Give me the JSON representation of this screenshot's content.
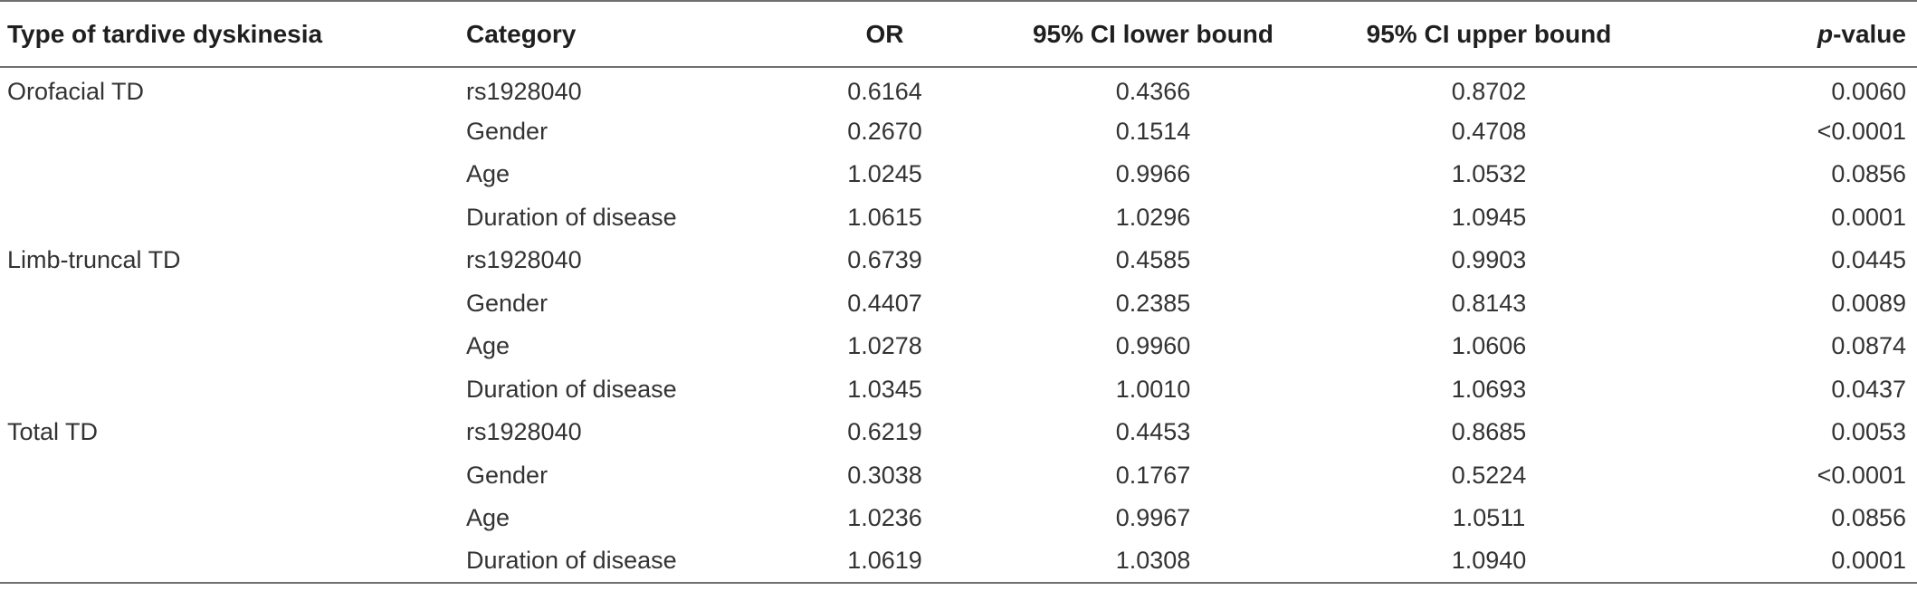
{
  "table": {
    "headers": {
      "type": "Type of tardive dyskinesia",
      "category": "Category",
      "or": "OR",
      "ci_lower": "95% CI lower bound",
      "ci_upper": "95% CI upper bound",
      "p_prefix": "p",
      "p_suffix": "-value"
    },
    "rows": [
      {
        "type": "Orofacial TD",
        "category": "rs1928040",
        "or": "0.6164",
        "ci_lower": "0.4366",
        "ci_upper": "0.8702",
        "p": "0.0060"
      },
      {
        "type": "",
        "category": "Gender",
        "or": "0.2670",
        "ci_lower": "0.1514",
        "ci_upper": "0.4708",
        "p": "<0.0001"
      },
      {
        "type": "",
        "category": "Age",
        "or": "1.0245",
        "ci_lower": "0.9966",
        "ci_upper": "1.0532",
        "p": "0.0856"
      },
      {
        "type": "",
        "category": "Duration of disease",
        "or": "1.0615",
        "ci_lower": "1.0296",
        "ci_upper": "1.0945",
        "p": "0.0001"
      },
      {
        "type": "Limb-truncal TD",
        "category": "rs1928040",
        "or": "0.6739",
        "ci_lower": "0.4585",
        "ci_upper": "0.9903",
        "p": "0.0445"
      },
      {
        "type": "",
        "category": "Gender",
        "or": "0.4407",
        "ci_lower": "0.2385",
        "ci_upper": "0.8143",
        "p": "0.0089"
      },
      {
        "type": "",
        "category": "Age",
        "or": "1.0278",
        "ci_lower": "0.9960",
        "ci_upper": "1.0606",
        "p": "0.0874"
      },
      {
        "type": "",
        "category": "Duration of disease",
        "or": "1.0345",
        "ci_lower": "1.0010",
        "ci_upper": "1.0693",
        "p": "0.0437"
      },
      {
        "type": "Total TD",
        "category": "rs1928040",
        "or": "0.6219",
        "ci_lower": "0.4453",
        "ci_upper": "0.8685",
        "p": "0.0053"
      },
      {
        "type": "",
        "category": "Gender",
        "or": "0.3038",
        "ci_lower": "0.1767",
        "ci_upper": "0.5224",
        "p": "<0.0001"
      },
      {
        "type": "",
        "category": "Age",
        "or": "1.0236",
        "ci_lower": "0.9967",
        "ci_upper": "1.0511",
        "p": "0.0856"
      },
      {
        "type": "",
        "category": "Duration of disease",
        "or": "1.0619",
        "ci_lower": "1.0308",
        "ci_upper": "1.0940",
        "p": "0.0001"
      }
    ]
  }
}
